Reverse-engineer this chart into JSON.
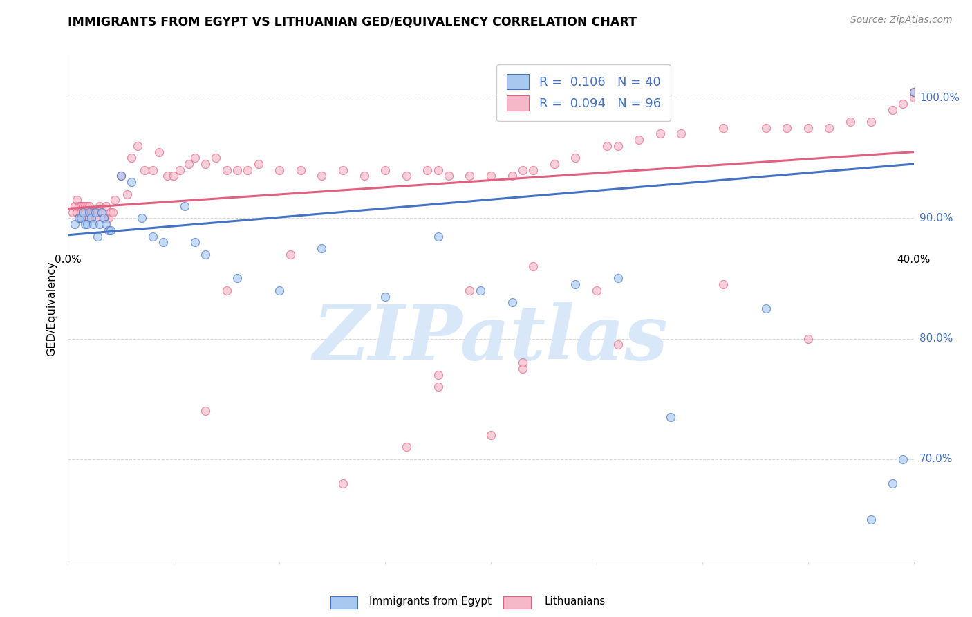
{
  "title": "IMMIGRANTS FROM EGYPT VS LITHUANIAN GED/EQUIVALENCY CORRELATION CHART",
  "source": "Source: ZipAtlas.com",
  "ylabel": "GED/Equivalency",
  "yticks_labels": [
    "70.0%",
    "80.0%",
    "90.0%",
    "100.0%"
  ],
  "ytick_vals": [
    0.7,
    0.8,
    0.9,
    1.0
  ],
  "xmin": 0.0,
  "xmax": 0.4,
  "ymin": 0.615,
  "ymax": 1.035,
  "legend_R1": "0.106",
  "legend_N1": "40",
  "legend_R2": "0.094",
  "legend_N2": "96",
  "blue_color": "#a8c8f0",
  "pink_color": "#f5b8c8",
  "line_blue": "#4472c4",
  "line_pink": "#e06080",
  "text_blue": "#4472c4",
  "watermark_text": "ZIPatlas",
  "watermark_color": "#d8e8f8",
  "legend_label1": "Immigrants from Egypt",
  "legend_label2": "Lithuanians",
  "blue_scatter_x": [
    0.003,
    0.005,
    0.006,
    0.007,
    0.008,
    0.009,
    0.01,
    0.011,
    0.012,
    0.013,
    0.014,
    0.015,
    0.016,
    0.017,
    0.018,
    0.019,
    0.02,
    0.025,
    0.03,
    0.035,
    0.04,
    0.045,
    0.055,
    0.06,
    0.065,
    0.08,
    0.1,
    0.12,
    0.15,
    0.175,
    0.195,
    0.21,
    0.24,
    0.26,
    0.285,
    0.33,
    0.38,
    0.39,
    0.395,
    0.4
  ],
  "blue_scatter_y": [
    0.895,
    0.9,
    0.9,
    0.905,
    0.895,
    0.895,
    0.905,
    0.9,
    0.895,
    0.905,
    0.885,
    0.895,
    0.905,
    0.9,
    0.895,
    0.89,
    0.89,
    0.935,
    0.93,
    0.9,
    0.885,
    0.88,
    0.91,
    0.88,
    0.87,
    0.85,
    0.84,
    0.875,
    0.835,
    0.885,
    0.84,
    0.83,
    0.845,
    0.85,
    0.735,
    0.825,
    0.65,
    0.68,
    0.7,
    1.005
  ],
  "pink_scatter_x": [
    0.002,
    0.003,
    0.004,
    0.004,
    0.005,
    0.005,
    0.006,
    0.006,
    0.007,
    0.007,
    0.008,
    0.008,
    0.009,
    0.009,
    0.01,
    0.01,
    0.011,
    0.012,
    0.013,
    0.014,
    0.015,
    0.016,
    0.017,
    0.018,
    0.019,
    0.02,
    0.021,
    0.022,
    0.025,
    0.028,
    0.03,
    0.033,
    0.036,
    0.04,
    0.043,
    0.047,
    0.05,
    0.053,
    0.057,
    0.06,
    0.065,
    0.07,
    0.075,
    0.08,
    0.085,
    0.09,
    0.1,
    0.11,
    0.12,
    0.13,
    0.14,
    0.15,
    0.16,
    0.17,
    0.175,
    0.18,
    0.19,
    0.2,
    0.21,
    0.215,
    0.22,
    0.23,
    0.24,
    0.255,
    0.26,
    0.27,
    0.28,
    0.29,
    0.31,
    0.33,
    0.34,
    0.35,
    0.36,
    0.37,
    0.38,
    0.39,
    0.395,
    0.4,
    0.4,
    0.4,
    0.25,
    0.31,
    0.26,
    0.35,
    0.175,
    0.215,
    0.075,
    0.19,
    0.215,
    0.175,
    0.105,
    0.22,
    0.065,
    0.2,
    0.16,
    0.13
  ],
  "pink_scatter_y": [
    0.905,
    0.91,
    0.905,
    0.915,
    0.9,
    0.91,
    0.905,
    0.91,
    0.905,
    0.91,
    0.905,
    0.91,
    0.91,
    0.9,
    0.91,
    0.9,
    0.905,
    0.905,
    0.9,
    0.905,
    0.91,
    0.905,
    0.9,
    0.91,
    0.9,
    0.905,
    0.905,
    0.915,
    0.935,
    0.92,
    0.95,
    0.96,
    0.94,
    0.94,
    0.955,
    0.935,
    0.935,
    0.94,
    0.945,
    0.95,
    0.945,
    0.95,
    0.94,
    0.94,
    0.94,
    0.945,
    0.94,
    0.94,
    0.935,
    0.94,
    0.935,
    0.94,
    0.935,
    0.94,
    0.94,
    0.935,
    0.935,
    0.935,
    0.935,
    0.94,
    0.94,
    0.945,
    0.95,
    0.96,
    0.96,
    0.965,
    0.97,
    0.97,
    0.975,
    0.975,
    0.975,
    0.975,
    0.975,
    0.98,
    0.98,
    0.99,
    0.995,
    1.0,
    1.005,
    1.005,
    0.84,
    0.845,
    0.795,
    0.8,
    0.76,
    0.775,
    0.84,
    0.84,
    0.78,
    0.77,
    0.87,
    0.86,
    0.74,
    0.72,
    0.71,
    0.68
  ],
  "blue_line_x": [
    0.0,
    0.4
  ],
  "blue_line_y": [
    0.886,
    0.945
  ],
  "pink_line_x": [
    0.0,
    0.4
  ],
  "pink_line_y": [
    0.908,
    0.955
  ],
  "marker_size": 75,
  "marker_alpha": 0.65,
  "grid_color": "#d8d8d8",
  "bg_color": "#ffffff"
}
